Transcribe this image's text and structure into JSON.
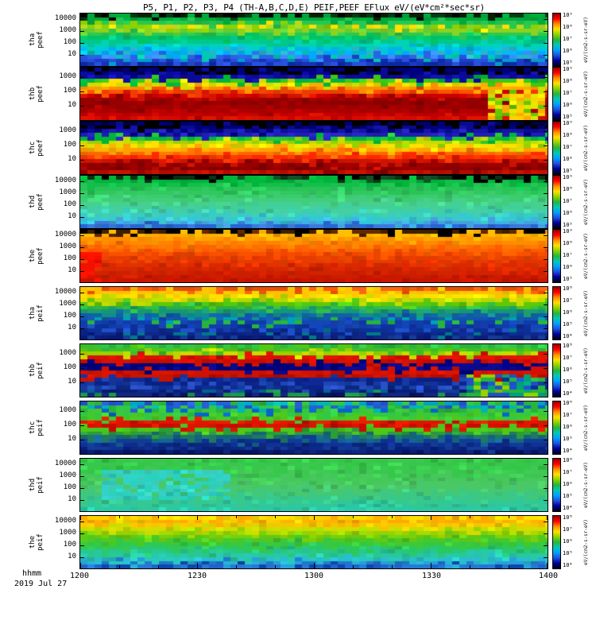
{
  "title": "P5, P1, P2, P3, P4 (TH-A,B,C,D,E)  PEIF,PEEF EFlux eV/(eV*cm²*sec*sr)",
  "x_axis": {
    "label": "hhmm",
    "date_label": "2019 Jul 27",
    "ticks": [
      "1200",
      "1230",
      "1300",
      "1330",
      "1400"
    ]
  },
  "chart_data": {
    "type": "heatmap",
    "title": "P5, P1, P2, P3, P4 (TH-A,B,C,D,E)  PEIF,PEEF EFlux eV/(eV*cm²*sec*sr)",
    "x": {
      "label": "hhmm",
      "date": "2019 Jul 27",
      "start": "1200",
      "end": "1400",
      "ticks": [
        "1200",
        "1230",
        "1300",
        "1330",
        "1400"
      ]
    },
    "y": {
      "scale": "log",
      "unit": "eV",
      "ticks": [
        "10000",
        "1000",
        "100",
        "10"
      ]
    },
    "colormap": "rainbow",
    "colorbar_stops": [
      "#960000",
      "#ff0000",
      "#ff8c00",
      "#ffe000",
      "#8cd200",
      "#28b43c",
      "#00c8b4",
      "#00a0ff",
      "#1e50dc",
      "#000096",
      "#000014"
    ],
    "panels": [
      {
        "id": "tha-peef",
        "label": "tha peef",
        "seed": 11,
        "y_ticks": [
          "10000",
          "1000",
          "100",
          "10"
        ],
        "colorbar_ticks": [
          "10⁹",
          "10⁸",
          "10⁷",
          "10⁶",
          "10⁵"
        ],
        "unit": "eV/(cm2-s-sr-eV)",
        "rows": [
          [
            "#0a1e00",
            "#003c14",
            "#000000"
          ],
          "#00aa3c",
          "#28c850",
          [
            "#b4dc1e",
            "#ffe000",
            "#8cd200"
          ],
          [
            "#64cc32",
            "#8cd21e"
          ],
          "#2cc850",
          "#00c364",
          "#00c88c",
          "#00d2b4",
          [
            "#00c8dc",
            "#00b4e6"
          ],
          [
            "#00aaff",
            "#28b4c8"
          ],
          [
            "#3c8cff",
            "#00c8b4",
            "#2864e6"
          ],
          [
            "#2850dc",
            "#00a0c8",
            "#1e3cc8"
          ],
          [
            "#1832b4",
            "#2850dc",
            "#0a28a0"
          ]
        ],
        "patches": []
      },
      {
        "id": "thb-peef",
        "label": "thb peef",
        "seed": 22,
        "y_ticks": [
          "1000",
          "100",
          "10"
        ],
        "colorbar_ticks": [
          "10⁹",
          "10⁸",
          "10⁷",
          "10⁶",
          "10⁵"
        ],
        "unit": "eV/(cm2-s-sr-eV)",
        "rows": [
          [
            "#000000",
            "#000050",
            "#000078"
          ],
          [
            "#000082",
            "#0a0aa0",
            "#000000"
          ],
          [
            "#1414b4",
            "#0a0a96"
          ],
          [
            "#00b43c",
            "#3cc814"
          ],
          [
            "#d2dc00",
            "#ffe000"
          ],
          [
            "#ffaa00",
            "#ff8c00"
          ],
          [
            "#ff5000",
            "#f03c00"
          ],
          [
            "#d21400",
            "#c80000"
          ],
          [
            "#aa0000",
            "#960000"
          ],
          [
            "#8c0000",
            "#960000"
          ],
          [
            "#960000",
            "#a00000"
          ],
          [
            "#aa0000",
            "#b40000"
          ],
          [
            "#c80000",
            "#be0000"
          ],
          [
            "#dc1400",
            "#d20a00"
          ]
        ],
        "patches": [
          {
            "x0": 0.87,
            "x1": 1.0,
            "y0": 0.4,
            "y1": 1.0,
            "colors": [
              "#ffd200",
              "#c8dc00",
              "#64c800",
              "#ffaa00",
              "#e6e600"
            ]
          }
        ]
      },
      {
        "id": "thc-peef",
        "label": "thc peef",
        "seed": 33,
        "y_ticks": [
          "1000",
          "100",
          "10"
        ],
        "colorbar_ticks": [
          "10⁹",
          "10⁸",
          "10⁷",
          "10⁶",
          "10⁵"
        ],
        "unit": "eV/(cm2-s-sr-eV)",
        "rows": [
          [
            "#000000",
            "#00003c",
            "#000064"
          ],
          [
            "#000078",
            "#000000",
            "#0a0a8c"
          ],
          [
            "#1414aa",
            "#0a0a96",
            "#000082"
          ],
          [
            "#2828c8",
            "#1e1eb4"
          ],
          [
            "#00b43c",
            "#28c832"
          ],
          [
            "#96d200",
            "#c8dc00"
          ],
          [
            "#ffe000",
            "#e6dc00"
          ],
          [
            "#ffb400",
            "#ffa000"
          ],
          [
            "#ff7800",
            "#ff6400"
          ],
          [
            "#ff3c00",
            "#ff2800"
          ],
          [
            "#d21400",
            "#c81400"
          ],
          [
            "#a00000",
            "#960000"
          ],
          [
            "#8c0000",
            "#820000"
          ],
          [
            "#c81400",
            "#b40a00"
          ]
        ],
        "patches": []
      },
      {
        "id": "thd-peef",
        "label": "thd peef",
        "seed": 44,
        "y_ticks": [
          "10000",
          "1000",
          "100",
          "10"
        ],
        "colorbar_ticks": [
          "10⁹",
          "10⁸",
          "10⁷",
          "10⁶",
          "10⁵"
        ],
        "unit": "eV/(cm2-s-sr-eV)",
        "rows": [
          [
            "#0a3214",
            "#145028",
            "#000000"
          ],
          "#00b43c",
          "#14be4b",
          "#28c455",
          "#32c860",
          "#3bcc6e",
          "#41ce7c",
          "#46d08c",
          "#41d09b",
          [
            "#3ccfaa",
            "#46d0a0"
          ],
          [
            "#37cdc3",
            "#41cfb4"
          ],
          [
            "#32c8d7",
            "#3cc8c8"
          ],
          [
            "#3cb4e6",
            "#46a0e0"
          ],
          [
            "#3c78dc",
            "#2864d2"
          ]
        ],
        "patches": []
      },
      {
        "id": "the-peef",
        "label": "the peef",
        "seed": 55,
        "y_ticks": [
          "10000",
          "1000",
          "100",
          "10"
        ],
        "colorbar_ticks": [
          "10⁹",
          "10⁸",
          "10⁷",
          "10⁶",
          "10⁵"
        ],
        "unit": "eV/(cm2-s-sr-eV)",
        "rows": [
          [
            "#3c1e00",
            "#000000",
            "#642800"
          ],
          [
            "#ffbe00",
            "#ffaa00"
          ],
          [
            "#ffa000",
            "#ff9600"
          ],
          [
            "#ff8c00",
            "#ff8200"
          ],
          [
            "#ff7800",
            "#ff6e00"
          ],
          [
            "#ff6400",
            "#ff5a00"
          ],
          [
            "#fa5000",
            "#f04600"
          ],
          [
            "#eb4600",
            "#e63c00"
          ],
          [
            "#e63c00",
            "#e63200"
          ],
          [
            "#e13200",
            "#dc2800"
          ],
          [
            "#d72800",
            "#d22300"
          ],
          [
            "#d22300",
            "#cd1e00"
          ],
          [
            "#cd1e00",
            "#c81900"
          ],
          [
            "#c81400",
            "#c31400"
          ]
        ],
        "patches": [
          {
            "x0": 0.0,
            "x1": 0.05,
            "y0": 0.45,
            "y1": 1.0,
            "colors": [
              "#ff1400",
              "#f50f00"
            ]
          }
        ]
      },
      {
        "id": "tha-peif",
        "label": "tha peif",
        "seed": 66,
        "y_ticks": [
          "10000",
          "1000",
          "100",
          "10"
        ],
        "colorbar_ticks": [
          "10⁸",
          "10⁷",
          "10⁶",
          "10⁵",
          "10⁴"
        ],
        "unit": "eV/(cm2-s-sr-eV)",
        "rows": [
          [
            "#e65000",
            "#ff6414"
          ],
          [
            "#ffc800",
            "#ffbe00"
          ],
          [
            "#ffe000",
            "#f0dc00"
          ],
          [
            "#b4d800",
            "#c8dc00"
          ],
          [
            "#50c814",
            "#64c800"
          ],
          [
            "#28b43c",
            "#32be46"
          ],
          [
            "#149678",
            "#1e9e6e"
          ],
          [
            "#0f64a0",
            "#148c8c"
          ],
          [
            "#1450b4",
            "#0f5aaa",
            "#00a0b4"
          ],
          [
            "#0f3caa",
            "#1446b4",
            "#28b43c"
          ],
          [
            "#0a32a0",
            "#143caa",
            "#0f46be"
          ],
          [
            "#0f2d96",
            "#0a3296",
            "#1e50c8"
          ],
          [
            "#0a2382",
            "#0f288c",
            "#00788c"
          ],
          [
            "#061978",
            "#0a1e82",
            "#143c9b"
          ]
        ],
        "patches": []
      },
      {
        "id": "thb-peif",
        "label": "thb peif",
        "seed": 77,
        "y_ticks": [
          "1000",
          "100",
          "10"
        ],
        "colorbar_ticks": [
          "10⁸",
          "10⁷",
          "10⁶",
          "10⁵",
          "10⁴"
        ],
        "unit": "eV/(cm2-s-sr-eV)",
        "rows": [
          [
            "#28b43c",
            "#32c846"
          ],
          [
            "#50c814",
            "#3cbe28"
          ],
          [
            "#c8dc00",
            "#96d200"
          ],
          [
            "#e61400",
            "#dc0f00"
          ],
          [
            "#c80a00",
            "#d21400"
          ],
          [
            "#000082",
            "#00006e",
            "#0a0a96"
          ],
          [
            "#000078",
            "#0a0a8c"
          ],
          [
            "#dc1400",
            "#d20f00"
          ],
          [
            "#b40a00",
            "#c81400"
          ],
          [
            "#0f2896",
            "#1432a0",
            "#0a1e82"
          ],
          [
            "#0a2388",
            "#143ca0",
            "#1e46b4"
          ],
          [
            "#0f2d96",
            "#0a2882",
            "#2850c8"
          ],
          [
            "#0a1e78",
            "#143c96",
            "#00648c"
          ],
          [
            "#061464",
            "#0f2882",
            "#1e9650"
          ]
        ],
        "patches": [
          {
            "x0": 0.82,
            "x1": 1.0,
            "y0": 0.6,
            "y1": 1.0,
            "colors": [
              "#28b43c",
              "#96d200",
              "#00a078",
              "#1e50c8"
            ]
          }
        ]
      },
      {
        "id": "thc-peif",
        "label": "thc peif",
        "seed": 88,
        "y_ticks": [
          "1000",
          "100",
          "10"
        ],
        "colorbar_ticks": [
          "10⁸",
          "10⁷",
          "10⁶",
          "10⁵",
          "10⁴"
        ],
        "unit": "eV/(cm2-s-sr-eV)",
        "rows": [
          [
            "#28b43c",
            "#00a0c8",
            "#1e50c8",
            "#32c846"
          ],
          [
            "#32c846",
            "#00b4b4",
            "#2860d2"
          ],
          [
            "#3cc83c",
            "#28b43c",
            "#0a64c8"
          ],
          [
            "#46c828",
            "#32c846"
          ],
          [
            "#50c81e",
            "#3cc832"
          ],
          [
            "#e61400",
            "#f01e00"
          ],
          [
            "#c80a00",
            "#dc1400"
          ],
          [
            "#50c814",
            "#46c81e"
          ],
          [
            "#28a032",
            "#329646"
          ],
          [
            "#146478",
            "#1e7864"
          ],
          [
            "#0f3c96",
            "#146496"
          ],
          [
            "#0a2882",
            "#0f3296"
          ],
          [
            "#0a1e78",
            "#0f2882",
            "#143c96"
          ],
          [
            "#061464",
            "#0a1e78"
          ]
        ],
        "patches": []
      },
      {
        "id": "thd-peif",
        "label": "thd peif",
        "seed": 99,
        "y_ticks": [
          "10000",
          "1000",
          "100",
          "10"
        ],
        "colorbar_ticks": [
          "10⁸",
          "10⁷",
          "10⁶",
          "10⁵",
          "10⁴"
        ],
        "unit": "eV/(cm2-s-sr-eV)",
        "rows": [
          [
            "#32c846",
            "#3cc850"
          ],
          "#37c84b",
          [
            "#3cc850",
            "#32c846"
          ],
          [
            "#41c855",
            "#37c84b"
          ],
          [
            "#46c85a",
            "#3cc850"
          ],
          [
            "#46c85f",
            "#41c855"
          ],
          [
            "#4bc864",
            "#46c85a"
          ],
          [
            "#46c86e",
            "#4bc864"
          ],
          [
            "#41c878",
            "#46c86e"
          ],
          [
            "#3cc882",
            "#41c878"
          ],
          [
            "#37c88c",
            "#3cc882"
          ],
          [
            "#32c896",
            "#37c88c"
          ],
          [
            "#2dc8a0",
            "#32c896"
          ],
          [
            "#28c8aa",
            "#2dc8a0"
          ]
        ],
        "patches": [
          {
            "x0": 0.04,
            "x1": 0.32,
            "y0": 0.25,
            "y1": 0.75,
            "colors": [
              "#28d2be",
              "#32d2c8",
              "#3cccb4"
            ]
          }
        ]
      },
      {
        "id": "the-peif",
        "label": "the peif",
        "seed": 110,
        "y_ticks": [
          "10000",
          "1000",
          "100",
          "10"
        ],
        "colorbar_ticks": [
          "10⁸",
          "10⁷",
          "10⁶",
          "10⁵",
          "10⁴"
        ],
        "unit": "eV/(cm2-s-sr-eV)",
        "rows": [
          [
            "#ffe000",
            "#ffd200"
          ],
          [
            "#ffaa00",
            "#ffb400"
          ],
          [
            "#ffc800",
            "#f0c800"
          ],
          [
            "#c8dc00",
            "#d2dc00"
          ],
          [
            "#96d200",
            "#aad800"
          ],
          [
            "#64c814",
            "#78d00a"
          ],
          [
            "#46c828",
            "#50c81e"
          ],
          [
            "#32c846",
            "#3cc83c"
          ],
          [
            "#28c864",
            "#2dc855"
          ],
          [
            "#28c88c",
            "#28c878"
          ],
          [
            "#28c8aa",
            "#28c89b"
          ],
          [
            "#28becd",
            "#28c8be"
          ],
          [
            "#28a0dc",
            "#28b4d2",
            "#1e78c8"
          ],
          [
            "#1e64c8",
            "#2878d2",
            "#0f46aa"
          ]
        ],
        "patches": []
      }
    ]
  }
}
